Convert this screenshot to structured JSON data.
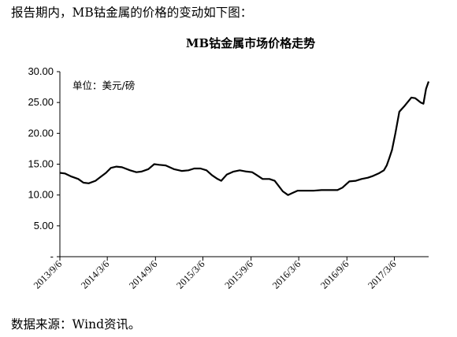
{
  "intro_text": "报告期内，MB钴金属的价格的变动如下图：",
  "source_text": "数据来源：Wind资讯。",
  "chart_data": {
    "type": "line",
    "title": "MB钴金属市场价格走势",
    "unit_label": "单位：美元/磅",
    "xlabel": "",
    "ylabel": "",
    "ylim": [
      0,
      30
    ],
    "y_tick_labels": [
      "-",
      "5.00",
      "10.00",
      "15.00",
      "20.00",
      "25.00",
      "30.00"
    ],
    "y_tick_values": [
      0,
      5,
      10,
      15,
      20,
      25,
      30
    ],
    "x_tick_labels": [
      "2013/9/6",
      "2014/3/6",
      "2014/9/6",
      "2015/3/6",
      "2015/9/6",
      "2016/3/6",
      "2016/9/6",
      "2017/3/6"
    ],
    "x_tick_dates": [
      "2013-09-06",
      "2014-03-06",
      "2014-09-06",
      "2015-03-06",
      "2015-09-06",
      "2016-03-06",
      "2016-09-06",
      "2017-03-06"
    ],
    "grid": false,
    "legend": "none",
    "line_color": "#000000",
    "series": [
      {
        "x": [
          "2013-09-06",
          "2013-09-25",
          "2013-10-20",
          "2013-11-15",
          "2013-12-05",
          "2013-12-25",
          "2014-01-20",
          "2014-02-10",
          "2014-03-01",
          "2014-03-20",
          "2014-04-10",
          "2014-05-01",
          "2014-06-01",
          "2014-06-25",
          "2014-07-15",
          "2014-08-10",
          "2014-09-01",
          "2014-09-20",
          "2014-10-15",
          "2014-11-15",
          "2014-12-15",
          "2015-01-10",
          "2015-02-01",
          "2015-02-25",
          "2015-03-20",
          "2015-04-10",
          "2015-05-01",
          "2015-05-15",
          "2015-06-05",
          "2015-07-01",
          "2015-07-25",
          "2015-08-20",
          "2015-09-10",
          "2015-09-25",
          "2015-10-20",
          "2015-11-15",
          "2015-12-05",
          "2015-12-20",
          "2016-01-05",
          "2016-01-25",
          "2016-02-10",
          "2016-03-01",
          "2016-04-01",
          "2016-05-01",
          "2016-06-01",
          "2016-07-01",
          "2016-08-01",
          "2016-08-20",
          "2016-09-15",
          "2016-10-10",
          "2016-11-01",
          "2016-11-25",
          "2016-12-15",
          "2017-01-05",
          "2017-01-25",
          "2017-02-05",
          "2017-02-15",
          "2017-02-25",
          "2017-03-10",
          "2017-03-25",
          "2017-04-15",
          "2017-05-10",
          "2017-05-25",
          "2017-06-15",
          "2017-06-25",
          "2017-07-05",
          "2017-07-15"
        ],
        "y": [
          13.6,
          13.5,
          13.0,
          12.6,
          12.0,
          11.9,
          12.3,
          13.0,
          13.6,
          14.4,
          14.6,
          14.5,
          14.0,
          13.7,
          13.8,
          14.2,
          15.0,
          14.9,
          14.8,
          14.2,
          13.9,
          14.0,
          14.3,
          14.3,
          14.0,
          13.2,
          12.6,
          12.3,
          13.3,
          13.8,
          14.0,
          13.8,
          13.7,
          13.3,
          12.6,
          12.6,
          12.3,
          11.5,
          10.6,
          10.0,
          10.3,
          10.7,
          10.7,
          10.7,
          10.8,
          10.8,
          10.8,
          11.2,
          12.2,
          12.3,
          12.6,
          12.8,
          13.1,
          13.5,
          14.0,
          14.8,
          16.0,
          17.3,
          20.0,
          23.5,
          24.5,
          25.8,
          25.7,
          25.0,
          24.8,
          27.2,
          28.4
        ]
      }
    ]
  }
}
